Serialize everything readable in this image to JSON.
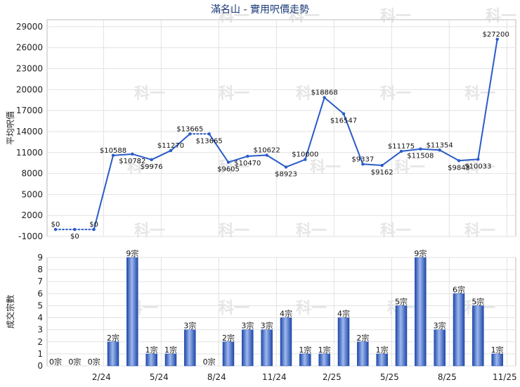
{
  "watermark": "科一",
  "chart_data": [
    {
      "type": "line",
      "title": "滿名山 - 實用呎價走勢",
      "ylabel": "平均呎價",
      "y_ticks": [
        -1000,
        2000,
        5000,
        8000,
        11000,
        14000,
        17000,
        20000,
        23000,
        26000,
        29000
      ],
      "ylim": [
        -1000,
        30000
      ],
      "grid": true,
      "series": [
        {
          "color": "#2a5cc8",
          "values": [
            0,
            0,
            0,
            10588,
            10782,
            9976,
            11270,
            13665,
            13665,
            9605,
            10470,
            10622,
            8923,
            10000,
            18868,
            16547,
            9337,
            9162,
            11175,
            11508,
            11354,
            9843,
            10033,
            27200
          ],
          "labels": [
            "$0",
            "$0",
            "$0",
            "$10588",
            "$10782",
            "$9976",
            "$11270",
            "$13665",
            "$13665",
            "$9605",
            "$10470",
            "$10622",
            "$8923",
            "$10000",
            "$18868",
            "$16547",
            "$9337",
            "$9162",
            "$11175",
            "$11508",
            "$11354",
            "$9843",
            "$10033",
            "$27200"
          ],
          "dotted_segments": [
            0,
            1,
            7
          ]
        }
      ]
    },
    {
      "type": "bar",
      "ylabel": "成交宗數",
      "y_ticks": [
        0,
        1,
        2,
        3,
        4,
        5,
        6,
        7,
        8,
        9
      ],
      "ylim": [
        0,
        9
      ],
      "grid": true,
      "x_ticks": [
        {
          "index": 2,
          "label": "2/24"
        },
        {
          "index": 5,
          "label": "5/24"
        },
        {
          "index": 8,
          "label": "8/24"
        },
        {
          "index": 11,
          "label": "11/24"
        },
        {
          "index": 14,
          "label": "2/25"
        },
        {
          "index": 17,
          "label": "5/25"
        },
        {
          "index": 20,
          "label": "8/25"
        },
        {
          "index": 23,
          "label": "11/25"
        }
      ],
      "series": [
        {
          "color": "#2a5cc8",
          "values": [
            0,
            0,
            0,
            2,
            9,
            1,
            1,
            3,
            0,
            2,
            3,
            3,
            4,
            1,
            1,
            4,
            2,
            1,
            5,
            9,
            3,
            6,
            5,
            1
          ],
          "labels": [
            "0宗",
            "0宗",
            "0宗",
            "2宗",
            "9宗",
            "1宗",
            "1宗",
            "3宗",
            "0宗",
            "2宗",
            "3宗",
            "3宗",
            "4宗",
            "1宗",
            "1宗",
            "4宗",
            "2宗",
            "1宗",
            "5宗",
            "9宗",
            "3宗",
            "6宗",
            "5宗",
            "1宗"
          ]
        }
      ]
    }
  ]
}
